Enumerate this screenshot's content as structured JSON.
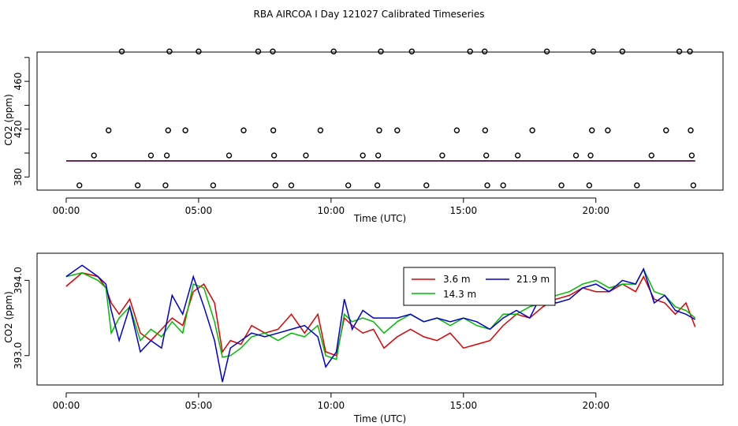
{
  "title": "RBA AIRCOA I  Day 121027  Calibrated Timeseries",
  "chart_data": [
    {
      "type": "scatter",
      "name": "top",
      "xlabel": "Time (UTC)",
      "ylabel": "CO2 (ppm)",
      "xlim": [
        -1.1,
        24.8
      ],
      "ylim": [
        369.0,
        484.5
      ],
      "xticks": [
        0,
        5,
        10,
        15,
        20
      ],
      "xtick_labels": [
        "00:00",
        "05:00",
        "10:00",
        "15:00",
        "20:00"
      ],
      "yticks": [
        380,
        420,
        460
      ],
      "ytick_labels": [
        "380",
        "420",
        "460"
      ],
      "extra_yticks": [
        400,
        440,
        480
      ],
      "outlier_x": [
        0.5,
        1.05,
        1.6,
        2.1,
        2.7,
        3.2,
        3.75,
        3.8,
        3.85,
        3.9,
        4.5,
        5.0,
        5.55,
        6.15,
        6.7,
        7.25,
        7.8,
        7.82,
        7.85,
        7.9,
        8.5,
        9.05,
        9.6,
        10.1,
        10.65,
        11.2,
        11.75,
        11.78,
        11.82,
        11.88,
        12.5,
        13.05,
        13.6,
        14.2,
        14.75,
        15.25,
        15.8,
        15.82,
        15.86,
        15.9,
        16.5,
        17.05,
        17.6,
        18.15,
        18.7,
        19.25,
        19.75,
        19.8,
        19.85,
        19.9,
        20.45,
        21.0,
        21.55,
        22.1,
        22.65,
        23.15,
        23.55,
        23.58,
        23.62,
        23.68
      ],
      "outlier_y": [
        373,
        398,
        419,
        485,
        373,
        398,
        373,
        398,
        419,
        485,
        419,
        485,
        373,
        398,
        419,
        485,
        485,
        419,
        398,
        373,
        373,
        398,
        419,
        485,
        373,
        398,
        373,
        398,
        419,
        485,
        419,
        485,
        373,
        398,
        419,
        485,
        485,
        419,
        398,
        373,
        373,
        398,
        419,
        485,
        373,
        398,
        373,
        398,
        419,
        485,
        419,
        485,
        373,
        398,
        419,
        485,
        485,
        419,
        398,
        373
      ]
    },
    {
      "type": "line",
      "name": "bottom",
      "xlabel": "Time (UTC)",
      "ylabel": "CO2 (ppm)",
      "xlim": [
        -1.1,
        24.8
      ],
      "ylim": [
        392.61,
        394.36
      ],
      "xticks": [
        0,
        5,
        10,
        15,
        20
      ],
      "xtick_labels": [
        "00:00",
        "05:00",
        "10:00",
        "15:00",
        "20:00"
      ],
      "yticks": [
        393.0,
        394.0
      ],
      "ytick_labels": [
        "393.0",
        "394.0"
      ],
      "x": [
        0.0,
        0.6,
        1.2,
        1.5,
        1.7,
        2.0,
        2.4,
        2.8,
        3.2,
        3.6,
        4.0,
        4.4,
        4.8,
        5.2,
        5.6,
        5.9,
        6.2,
        6.6,
        7.0,
        7.5,
        8.0,
        8.5,
        9.0,
        9.5,
        9.8,
        10.2,
        10.5,
        10.8,
        11.2,
        11.6,
        12.0,
        12.5,
        13.0,
        13.5,
        14.0,
        14.5,
        15.0,
        15.5,
        16.0,
        16.5,
        17.0,
        17.5,
        18.0,
        18.5,
        19.0,
        19.5,
        20.0,
        20.5,
        21.0,
        21.5,
        21.8,
        22.2,
        22.6,
        23.0,
        23.4,
        23.75
      ],
      "series": [
        {
          "name": "3.6 m",
          "color": "#dd0000",
          "values": [
            393.92,
            394.1,
            394.05,
            393.9,
            393.7,
            393.55,
            393.75,
            393.3,
            393.2,
            393.35,
            393.5,
            393.4,
            393.85,
            393.95,
            393.7,
            393.05,
            393.2,
            393.15,
            393.4,
            393.3,
            393.35,
            393.55,
            393.3,
            393.55,
            393.05,
            393.0,
            393.5,
            393.4,
            393.3,
            393.35,
            393.1,
            393.25,
            393.35,
            393.25,
            393.2,
            393.3,
            393.1,
            393.15,
            393.2,
            393.4,
            393.55,
            393.5,
            393.65,
            393.75,
            393.8,
            393.9,
            393.85,
            393.85,
            393.95,
            393.85,
            394.05,
            393.75,
            393.7,
            393.55,
            393.7,
            393.38
          ]
        },
        {
          "name": "14.3 m",
          "color": "#00bb00",
          "values": [
            394.05,
            394.1,
            394.0,
            393.9,
            393.3,
            393.5,
            393.65,
            393.2,
            393.35,
            393.25,
            393.45,
            393.3,
            393.95,
            393.9,
            393.45,
            392.98,
            393.0,
            393.1,
            393.25,
            393.3,
            393.2,
            393.3,
            393.25,
            393.4,
            393.0,
            392.95,
            393.55,
            393.45,
            393.5,
            393.45,
            393.3,
            393.45,
            393.55,
            393.45,
            393.5,
            393.4,
            393.5,
            393.4,
            393.35,
            393.55,
            393.55,
            393.65,
            393.7,
            393.8,
            393.85,
            393.95,
            394.0,
            393.9,
            393.95,
            393.95,
            394.15,
            393.85,
            393.8,
            393.65,
            393.6,
            393.5
          ]
        },
        {
          "name": "21.9 m",
          "color": "#0000cc",
          "values": [
            394.05,
            394.2,
            394.05,
            393.95,
            393.6,
            393.2,
            393.65,
            393.05,
            393.2,
            393.1,
            393.8,
            393.55,
            394.05,
            393.65,
            393.2,
            392.65,
            393.1,
            393.2,
            393.3,
            393.25,
            393.3,
            393.35,
            393.4,
            393.25,
            392.85,
            393.05,
            393.75,
            393.35,
            393.6,
            393.5,
            393.5,
            393.5,
            393.55,
            393.45,
            393.5,
            393.45,
            393.5,
            393.45,
            393.35,
            393.5,
            393.6,
            393.5,
            393.85,
            393.7,
            393.75,
            393.9,
            393.95,
            393.85,
            394.0,
            393.95,
            394.15,
            393.7,
            393.8,
            393.6,
            393.55,
            393.48
          ]
        }
      ],
      "baseline_value": 393.6,
      "legend": {
        "position": "top-right",
        "labels": [
          "3.6 m",
          "14.3 m",
          "21.9 m"
        ]
      }
    }
  ]
}
